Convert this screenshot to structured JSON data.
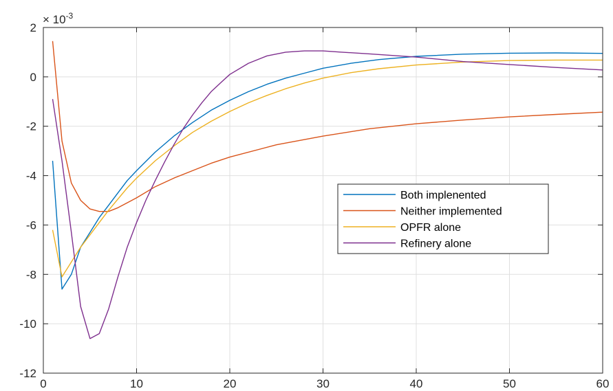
{
  "chart_data": {
    "type": "line",
    "exponent_label": {
      "base": "× 10",
      "power": "-3"
    },
    "xlim": [
      0,
      60
    ],
    "ylim": [
      -12,
      2
    ],
    "x_ticks": [
      0,
      10,
      20,
      30,
      40,
      50,
      60
    ],
    "x_tick_labels": [
      "0",
      "10",
      "20",
      "30",
      "40",
      "50",
      "60"
    ],
    "y_ticks": [
      -12,
      -10,
      -8,
      -6,
      -4,
      -2,
      0,
      2
    ],
    "y_tick_labels": [
      "-12",
      "-10",
      "-8",
      "-6",
      "-4",
      "-2",
      "0",
      "2"
    ],
    "grid": true,
    "legend_position": "center-right",
    "series": [
      {
        "name": "Both implenented",
        "color": "#0072BD",
        "x": [
          1,
          2,
          3,
          4,
          5,
          6,
          7,
          8,
          9,
          10,
          12,
          14,
          16,
          18,
          20,
          22,
          24,
          26,
          28,
          30,
          33,
          36,
          40,
          45,
          50,
          55,
          60
        ],
        "y": [
          -3.4,
          -8.6,
          -8.0,
          -6.9,
          -6.3,
          -5.7,
          -5.2,
          -4.7,
          -4.2,
          -3.8,
          -3.05,
          -2.4,
          -1.85,
          -1.35,
          -0.95,
          -0.6,
          -0.3,
          -0.05,
          0.15,
          0.35,
          0.55,
          0.7,
          0.83,
          0.92,
          0.96,
          0.97,
          0.95
        ]
      },
      {
        "name": "Neither implemented",
        "color": "#D95319",
        "x": [
          1,
          2,
          3,
          4,
          5,
          6,
          7,
          8,
          9,
          10,
          12,
          14,
          16,
          18,
          20,
          25,
          30,
          35,
          40,
          45,
          50,
          55,
          60
        ],
        "y": [
          1.45,
          -2.6,
          -4.3,
          -5.0,
          -5.35,
          -5.45,
          -5.45,
          -5.3,
          -5.1,
          -4.9,
          -4.45,
          -4.1,
          -3.8,
          -3.5,
          -3.25,
          -2.75,
          -2.4,
          -2.1,
          -1.9,
          -1.75,
          -1.62,
          -1.52,
          -1.43
        ]
      },
      {
        "name": "OPFR alone",
        "color": "#EDB120",
        "x": [
          1,
          2,
          3,
          4,
          5,
          6,
          7,
          8,
          9,
          10,
          12,
          14,
          16,
          18,
          20,
          22,
          24,
          26,
          28,
          30,
          33,
          36,
          40,
          45,
          50,
          55,
          60
        ],
        "y": [
          -6.2,
          -8.1,
          -7.5,
          -6.9,
          -6.4,
          -5.9,
          -5.4,
          -4.95,
          -4.5,
          -4.1,
          -3.4,
          -2.8,
          -2.25,
          -1.8,
          -1.4,
          -1.05,
          -0.75,
          -0.48,
          -0.25,
          -0.05,
          0.17,
          0.33,
          0.48,
          0.6,
          0.66,
          0.68,
          0.68
        ]
      },
      {
        "name": "Refinery alone",
        "color": "#7E2F8E",
        "x": [
          1,
          2,
          3,
          4,
          5,
          6,
          7,
          8,
          9,
          10,
          11,
          12,
          13,
          14,
          15,
          16,
          17,
          18,
          19,
          20,
          22,
          24,
          26,
          28,
          30,
          32,
          35,
          40,
          45,
          50,
          55,
          60
        ],
        "y": [
          -0.9,
          -3.4,
          -6.3,
          -9.3,
          -10.6,
          -10.4,
          -9.4,
          -8.1,
          -6.9,
          -5.9,
          -5.0,
          -4.2,
          -3.45,
          -2.75,
          -2.1,
          -1.55,
          -1.05,
          -0.6,
          -0.25,
          0.1,
          0.55,
          0.85,
          1.0,
          1.05,
          1.05,
          1.0,
          0.93,
          0.8,
          0.62,
          0.5,
          0.38,
          0.28
        ]
      }
    ]
  },
  "colors": {
    "axis": "#262626",
    "grid": "#dfdfdf",
    "background": "#ffffff"
  }
}
